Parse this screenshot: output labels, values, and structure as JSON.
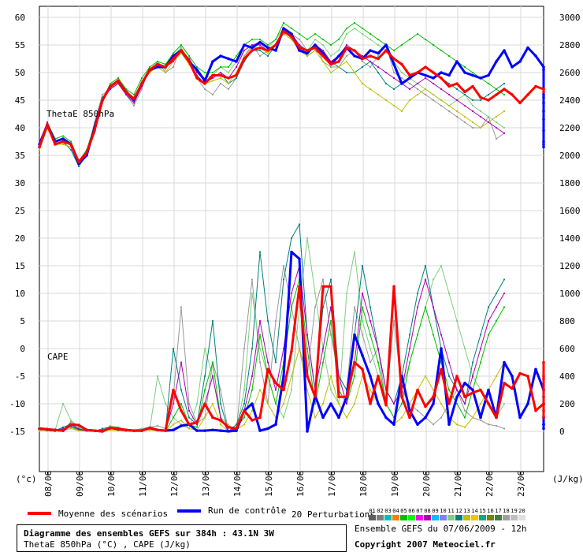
{
  "chart_data": {
    "type": "line",
    "title": "Diagramme des ensembles GEFS sur 384h : 43.1N 3W",
    "subtitle": "ThetaE 850hPa (°C) , CAPE (J/kg)",
    "xlabel": "",
    "y_left_unit": "(°c)",
    "y_right_unit": "(J/kg)",
    "panel_labels": {
      "thetae": "ThetaE 850hPa",
      "cape": "CAPE"
    },
    "x_ticks": [
      "08/06",
      "09/06",
      "10/06",
      "11/06",
      "12/06",
      "13/06",
      "14/06",
      "15/06",
      "16/06",
      "17/06",
      "18/06",
      "19/06",
      "20/06",
      "21/06",
      "22/06",
      "23/06"
    ],
    "y_left_ticks": [
      60,
      55,
      50,
      45,
      40,
      35,
      30,
      25,
      20,
      15,
      10,
      5,
      0,
      -5,
      -10,
      -15
    ],
    "y_right_ticks": [
      3000,
      2800,
      2600,
      2400,
      2200,
      2000,
      1800,
      1600,
      1400,
      1200,
      1000,
      800,
      600,
      400,
      200,
      0
    ],
    "ylim_left": [
      -15,
      60
    ],
    "ylim_right": [
      0,
      3000
    ],
    "grid": true,
    "step_hours": 6,
    "start_label": "07/06 12h",
    "series": [
      {
        "role": "moyenne",
        "color": "#ff0000",
        "thetae": [
          36.5,
          40.5,
          37,
          37.5,
          37,
          33.8,
          35.5,
          39.5,
          45,
          47.5,
          48.5,
          46.5,
          45.2,
          48,
          50.5,
          51.5,
          51,
          52.5,
          54,
          52,
          49,
          48,
          49.5,
          49.5,
          49,
          49.5,
          52.5,
          54,
          54.5,
          54,
          55,
          57.5,
          56.5,
          54.5,
          54,
          54.5,
          53,
          51.5,
          52,
          54.5,
          54,
          52.5,
          53,
          52.5,
          54,
          52.5,
          51.5,
          49.5,
          50,
          51,
          50,
          49,
          47.5,
          48,
          46.5,
          47.5,
          45.5,
          45,
          46,
          47,
          46,
          44.5,
          46,
          47.5,
          47,
          46.5,
          47
        ],
        "cape": [
          20,
          15,
          10,
          5,
          50,
          45,
          10,
          5,
          0,
          25,
          20,
          10,
          5,
          5,
          25,
          10,
          5,
          300,
          150,
          50,
          65,
          200,
          100,
          80,
          30,
          20,
          150,
          80,
          100,
          450,
          350,
          300,
          580,
          1050,
          400,
          250,
          1050,
          1050,
          250,
          250,
          500,
          450,
          200,
          400,
          190,
          1050,
          250,
          100,
          300,
          180,
          250,
          450,
          200,
          400,
          250,
          280,
          300,
          200,
          100,
          350,
          310,
          420,
          400,
          150,
          200,
          300,
          500,
          380,
          200,
          200,
          100,
          150,
          400
        ]
      },
      {
        "role": "controle",
        "color": "#0000ff",
        "thetae": [
          37,
          40.5,
          37.5,
          38,
          37,
          33.5,
          35,
          40,
          45,
          47.5,
          48.5,
          46.5,
          45,
          48,
          50.5,
          51,
          51,
          53,
          54,
          52,
          50.5,
          48.5,
          52,
          53,
          52.5,
          52,
          55,
          54.5,
          55.5,
          54.5,
          54,
          58,
          57,
          54,
          53.5,
          55,
          53.5,
          51.5,
          53,
          54.5,
          53,
          52.5,
          54,
          53.5,
          55,
          51.5,
          48,
          49,
          50,
          49.5,
          49,
          50,
          49.5,
          52,
          50,
          49.5,
          49,
          49.5,
          52,
          54,
          51,
          52,
          54.5,
          53,
          51,
          50.5,
          46,
          45.5,
          44.5,
          43,
          41.5,
          39.5,
          37.5,
          36.5,
          37
        ],
        "cape": [
          20,
          15,
          10,
          5,
          50,
          45,
          10,
          5,
          0,
          25,
          20,
          10,
          5,
          5,
          25,
          10,
          5,
          10,
          40,
          50,
          5,
          5,
          10,
          5,
          0,
          5,
          150,
          200,
          5,
          20,
          50,
          400,
          1300,
          1250,
          0,
          260,
          100,
          200,
          100,
          250,
          700,
          550,
          400,
          200,
          100,
          50,
          400,
          150,
          50,
          100,
          200,
          600,
          50,
          250,
          350,
          300,
          100,
          300,
          100,
          500,
          400,
          100,
          200,
          450,
          300,
          50,
          100,
          250,
          200,
          100,
          20,
          50
        ]
      },
      {
        "role": "perturbation",
        "color": "#999999",
        "thetae": [
          36,
          40,
          37,
          37,
          37.5,
          34,
          35,
          41,
          46,
          47,
          48.5,
          46,
          44,
          47,
          51,
          52,
          50,
          51,
          55,
          53,
          49,
          47,
          46,
          48,
          47,
          49,
          53,
          55,
          53,
          54,
          55,
          58,
          57,
          56,
          54,
          55,
          52,
          51,
          51,
          53,
          54,
          52,
          51,
          53,
          55,
          50,
          49,
          48,
          47,
          46,
          45,
          44,
          43,
          42,
          41,
          40,
          40,
          42,
          38,
          39
        ],
        "cape": [
          10,
          20,
          15,
          5,
          70,
          40,
          15,
          5,
          10,
          30,
          10,
          15,
          10,
          20,
          30,
          40,
          20,
          250,
          900,
          200,
          60,
          100,
          500,
          300,
          0,
          0,
          600,
          1100,
          500,
          200,
          800,
          1200,
          900,
          600,
          400,
          900,
          1100,
          700,
          400,
          300,
          900,
          700,
          500,
          600,
          200,
          800,
          300,
          200,
          150,
          100,
          50,
          100,
          200,
          300,
          150,
          100,
          80,
          50,
          40,
          20
        ]
      },
      {
        "role": "perturbation",
        "color": "#7fcf7f",
        "thetae": [
          36.5,
          41,
          37.5,
          38,
          37,
          33,
          35.5,
          40,
          44.5,
          48,
          49,
          47,
          45,
          48.5,
          50,
          52,
          50.5,
          53,
          54.5,
          52.5,
          50,
          49,
          49.5,
          51,
          50,
          52,
          54,
          55,
          55.5,
          54.5,
          56,
          58,
          56,
          55,
          54,
          56,
          55,
          53,
          54,
          57,
          58,
          57,
          56,
          55,
          54,
          52,
          50,
          49,
          48,
          47,
          46,
          45,
          44,
          45,
          46,
          44,
          43,
          42,
          41,
          40
        ],
        "cape": [
          30,
          20,
          10,
          200,
          80,
          30,
          10,
          0,
          5,
          40,
          30,
          10,
          5,
          20,
          10,
          400,
          200,
          100,
          50,
          20,
          200,
          600,
          400,
          100,
          50,
          0,
          300,
          1000,
          600,
          400,
          200,
          100,
          300,
          900,
          1400,
          1000,
          600,
          300,
          200,
          1000,
          1300,
          800,
          600,
          400,
          200,
          100,
          300,
          500,
          700,
          900,
          1100,
          1200,
          1000,
          800,
          600,
          400,
          300,
          200,
          100,
          200
        ]
      },
      {
        "role": "perturbation",
        "color": "#007f7f",
        "thetae": [
          36,
          40,
          37,
          37.5,
          36,
          33,
          35,
          39.5,
          45.5,
          47,
          48,
          46.5,
          45.5,
          48,
          50,
          51.5,
          51,
          52.5,
          53.5,
          52,
          49.5,
          48,
          49,
          50,
          48,
          49,
          52,
          54,
          54,
          53,
          55,
          57,
          57,
          55,
          53,
          54,
          53,
          52,
          51,
          50,
          50,
          51,
          52,
          50,
          48,
          47,
          48,
          49,
          50,
          51,
          50,
          49,
          48,
          47,
          46,
          45,
          45,
          46,
          47,
          48
        ],
        "cape": [
          20,
          10,
          5,
          30,
          50,
          20,
          5,
          0,
          20,
          30,
          20,
          10,
          5,
          10,
          20,
          10,
          5,
          600,
          300,
          100,
          50,
          400,
          800,
          200,
          0,
          50,
          200,
          600,
          1300,
          800,
          500,
          1100,
          1400,
          1500,
          700,
          300,
          900,
          1100,
          400,
          300,
          700,
          1200,
          900,
          600,
          300,
          200,
          400,
          700,
          1000,
          1200,
          900,
          600,
          400,
          300,
          200,
          500,
          700,
          900,
          1000,
          1100
        ]
      },
      {
        "role": "perturbation",
        "color": "#00bf00",
        "thetae": [
          37,
          41,
          38,
          38.5,
          37.5,
          34,
          36,
          40.5,
          45,
          48,
          49,
          47,
          46,
          49,
          51,
          52,
          51.5,
          53.5,
          55,
          53,
          51,
          50,
          50,
          51,
          51,
          53,
          55,
          56,
          56,
          55,
          56,
          59,
          58,
          57,
          56,
          57,
          56,
          55,
          56,
          58,
          59,
          58,
          57,
          56,
          55,
          54,
          55,
          56,
          57,
          56,
          55,
          54,
          53,
          52,
          51,
          50,
          49,
          48,
          47,
          46
        ],
        "cape": [
          10,
          5,
          0,
          20,
          30,
          10,
          5,
          0,
          10,
          20,
          10,
          5,
          0,
          10,
          15,
          5,
          0,
          100,
          200,
          50,
          30,
          300,
          500,
          100,
          0,
          30,
          100,
          300,
          700,
          400,
          200,
          500,
          900,
          1100,
          600,
          200,
          500,
          800,
          300,
          200,
          400,
          900,
          700,
          500,
          200,
          100,
          200,
          500,
          700,
          900,
          700,
          500,
          300,
          200,
          100,
          300,
          500,
          700,
          800,
          900
        ]
      },
      {
        "role": "perturbation",
        "color": "#bfbf00",
        "thetae": [
          36,
          40,
          37,
          37,
          36.5,
          33.5,
          35,
          39,
          44.5,
          47.5,
          48,
          46,
          45,
          48,
          50,
          51,
          50,
          52,
          53.5,
          51.5,
          49,
          48,
          48.5,
          49,
          48,
          50,
          53,
          54.5,
          54.5,
          53.5,
          55,
          57,
          56,
          54,
          53,
          54,
          52,
          50,
          51,
          52,
          50,
          48,
          47,
          46,
          45,
          44,
          43,
          45,
          46,
          47,
          46,
          45,
          44,
          43,
          42,
          41,
          40,
          41,
          42,
          43
        ],
        "cape": [
          5,
          10,
          5,
          10,
          20,
          5,
          0,
          0,
          5,
          10,
          5,
          0,
          0,
          5,
          10,
          5,
          0,
          50,
          80,
          20,
          10,
          100,
          200,
          50,
          0,
          10,
          50,
          150,
          300,
          200,
          100,
          200,
          400,
          600,
          300,
          100,
          200,
          400,
          200,
          100,
          200,
          400,
          300,
          200,
          100,
          50,
          100,
          200,
          300,
          400,
          300,
          200,
          100,
          50,
          30,
          100,
          200,
          300,
          400,
          500
        ]
      },
      {
        "role": "perturbation",
        "color": "#af00af",
        "thetae": [
          37,
          41,
          37.5,
          38,
          37,
          33.5,
          35,
          40,
          45,
          47,
          48,
          46,
          44.5,
          47.5,
          50.5,
          51.5,
          51,
          52,
          54,
          52.5,
          50,
          48.5,
          49,
          50,
          49,
          51,
          54,
          55,
          55,
          54,
          55,
          58,
          57,
          55,
          54,
          55,
          54,
          52,
          53,
          55,
          54,
          53,
          52,
          51,
          50,
          49,
          48,
          47,
          48,
          49,
          48,
          47,
          46,
          45,
          44,
          43,
          42,
          41,
          40,
          39
        ],
        "cape": [
          15,
          10,
          5,
          20,
          40,
          15,
          5,
          0,
          10,
          20,
          10,
          5,
          0,
          10,
          20,
          10,
          0,
          200,
          500,
          150,
          50,
          200,
          400,
          100,
          0,
          20,
          150,
          400,
          800,
          500,
          300,
          600,
          1000,
          1200,
          700,
          300,
          600,
          900,
          400,
          200,
          500,
          1000,
          800,
          600,
          300,
          200,
          300,
          600,
          900,
          1100,
          900,
          700,
          500,
          300,
          200,
          400,
          600,
          800,
          900,
          1000
        ]
      }
    ]
  },
  "legend": {
    "mean_label": "Moyenne des scénarios",
    "control_label": "Run de contrôle",
    "perturbations_label": "20 Perturbations",
    "pert_numbers": [
      "01",
      "02",
      "03",
      "04",
      "05",
      "06",
      "07",
      "08",
      "09",
      "10",
      "11",
      "12",
      "13",
      "14",
      "15",
      "16",
      "17",
      "18",
      "19",
      "20"
    ],
    "pert_colors": [
      "#5f5f5f",
      "#7f7f7f",
      "#00bfbf",
      "#ff7f00",
      "#00bf00",
      "#00ff00",
      "#ff00ff",
      "#af00af",
      "#00bfff",
      "#7f7fff",
      "#7fcf7f",
      "#007f7f",
      "#bfbf00",
      "#ffbf00",
      "#00af7f",
      "#7f7f00",
      "#3f7f3f",
      "#9f9f9f",
      "#bfbfbf",
      "#dfdfdf"
    ]
  },
  "info_box": {
    "line1": "Diagramme des ensembles GEFS sur 384h : 43.1N 3W",
    "line2": "ThetaE 850hPa (°C) , CAPE (J/kg)"
  },
  "footer": {
    "run": "Ensemble GEFS du 07/06/2009 - 12h",
    "copyright": "Copyright 2007 Meteociel.fr"
  }
}
